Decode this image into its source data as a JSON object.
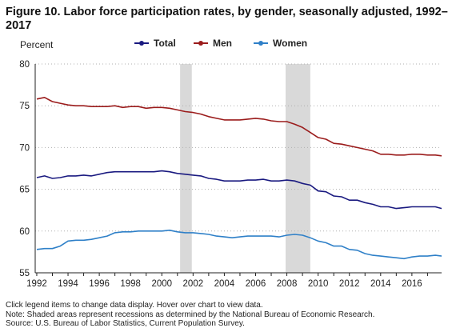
{
  "chart_data": {
    "type": "line",
    "title": "Figure 10. Labor force participation rates, by gender, seasonally adjusted, 1992–2017",
    "ylabel": "Percent",
    "xlabel": "",
    "xlim": [
      1991.9,
      2017.9
    ],
    "ylim": [
      55,
      80
    ],
    "yticks": [
      55,
      60,
      65,
      70,
      75,
      80
    ],
    "xticks": [
      1992,
      1994,
      1996,
      1998,
      2000,
      2002,
      2004,
      2006,
      2008,
      2010,
      2012,
      2014,
      2016
    ],
    "grid": "horizontal-dotted",
    "legend_position": "top",
    "recessions": [
      [
        2001.17,
        2001.92
      ],
      [
        2007.92,
        2009.5
      ]
    ],
    "series": [
      {
        "name": "Total",
        "color": "#1a1a80",
        "x": [
          1992,
          1992.5,
          1993,
          1993.5,
          1994,
          1994.5,
          1995,
          1995.5,
          1996,
          1996.5,
          1997,
          1997.5,
          1998,
          1998.5,
          1999,
          1999.5,
          2000,
          2000.5,
          2001,
          2001.5,
          2002,
          2002.5,
          2003,
          2003.5,
          2004,
          2004.5,
          2005,
          2005.5,
          2006,
          2006.5,
          2007,
          2007.5,
          2008,
          2008.5,
          2009,
          2009.5,
          2010,
          2010.5,
          2011,
          2011.5,
          2012,
          2012.5,
          2013,
          2013.5,
          2014,
          2014.5,
          2015,
          2015.5,
          2016,
          2016.5,
          2017,
          2017.5,
          2017.9
        ],
        "y": [
          66.4,
          66.6,
          66.3,
          66.4,
          66.6,
          66.6,
          66.7,
          66.6,
          66.8,
          67.0,
          67.1,
          67.1,
          67.1,
          67.1,
          67.1,
          67.1,
          67.2,
          67.1,
          66.9,
          66.8,
          66.7,
          66.6,
          66.3,
          66.2,
          66.0,
          66.0,
          66.0,
          66.1,
          66.1,
          66.2,
          66.0,
          66.0,
          66.1,
          66.0,
          65.7,
          65.5,
          64.8,
          64.7,
          64.2,
          64.1,
          63.7,
          63.7,
          63.4,
          63.2,
          62.9,
          62.9,
          62.7,
          62.8,
          62.9,
          62.9,
          62.9,
          62.9,
          62.7
        ]
      },
      {
        "name": "Men",
        "color": "#9b1c1c",
        "x": [
          1992,
          1992.5,
          1993,
          1993.5,
          1994,
          1994.5,
          1995,
          1995.5,
          1996,
          1996.5,
          1997,
          1997.5,
          1998,
          1998.5,
          1999,
          1999.5,
          2000,
          2000.5,
          2001,
          2001.5,
          2002,
          2002.5,
          2003,
          2003.5,
          2004,
          2004.5,
          2005,
          2005.5,
          2006,
          2006.5,
          2007,
          2007.5,
          2008,
          2008.5,
          2009,
          2009.5,
          2010,
          2010.5,
          2011,
          2011.5,
          2012,
          2012.5,
          2013,
          2013.5,
          2014,
          2014.5,
          2015,
          2015.5,
          2016,
          2016.5,
          2017,
          2017.5,
          2017.9
        ],
        "y": [
          75.8,
          76.0,
          75.5,
          75.3,
          75.1,
          75.0,
          75.0,
          74.9,
          74.9,
          74.9,
          75.0,
          74.8,
          74.9,
          74.9,
          74.7,
          74.8,
          74.8,
          74.7,
          74.5,
          74.3,
          74.2,
          74.0,
          73.7,
          73.5,
          73.3,
          73.3,
          73.3,
          73.4,
          73.5,
          73.4,
          73.2,
          73.1,
          73.1,
          72.8,
          72.4,
          71.8,
          71.2,
          71.0,
          70.5,
          70.4,
          70.2,
          70.0,
          69.8,
          69.6,
          69.2,
          69.2,
          69.1,
          69.1,
          69.2,
          69.2,
          69.1,
          69.1,
          69.0
        ]
      },
      {
        "name": "Women",
        "color": "#2f80c8",
        "x": [
          1992,
          1992.5,
          1993,
          1993.5,
          1994,
          1994.5,
          1995,
          1995.5,
          1996,
          1996.5,
          1997,
          1997.5,
          1998,
          1998.5,
          1999,
          1999.5,
          2000,
          2000.5,
          2001,
          2001.5,
          2002,
          2002.5,
          2003,
          2003.5,
          2004,
          2004.5,
          2005,
          2005.5,
          2006,
          2006.5,
          2007,
          2007.5,
          2008,
          2008.5,
          2009,
          2009.5,
          2010,
          2010.5,
          2011,
          2011.5,
          2012,
          2012.5,
          2013,
          2013.5,
          2014,
          2014.5,
          2015,
          2015.5,
          2016,
          2016.5,
          2017,
          2017.5,
          2017.9
        ],
        "y": [
          57.8,
          57.9,
          57.9,
          58.2,
          58.8,
          58.9,
          58.9,
          59.0,
          59.2,
          59.4,
          59.8,
          59.9,
          59.9,
          60.0,
          60.0,
          60.0,
          60.0,
          60.1,
          59.9,
          59.8,
          59.8,
          59.7,
          59.6,
          59.4,
          59.3,
          59.2,
          59.3,
          59.4,
          59.4,
          59.4,
          59.4,
          59.3,
          59.5,
          59.6,
          59.5,
          59.2,
          58.8,
          58.6,
          58.2,
          58.2,
          57.8,
          57.7,
          57.3,
          57.1,
          57.0,
          56.9,
          56.8,
          56.7,
          56.9,
          57.0,
          57.0,
          57.1,
          57.0
        ]
      }
    ]
  },
  "legend": {
    "items": [
      {
        "label": "Total",
        "color": "#1a1a80"
      },
      {
        "label": "Men",
        "color": "#9b1c1c"
      },
      {
        "label": "Women",
        "color": "#2f80c8"
      }
    ]
  },
  "notes": {
    "line1": "Click legend items to change data display. Hover over chart to view data.",
    "line2": "Note: Shaded areas represent recessions as determined by the National Bureau of Economic Research.",
    "line3": "Source: U.S. Bureau of Labor Statistics, Current Population Survey."
  },
  "colors": {
    "recession": "#d9d9d9",
    "grid": "#b0b0b0",
    "axis": "#222222"
  }
}
